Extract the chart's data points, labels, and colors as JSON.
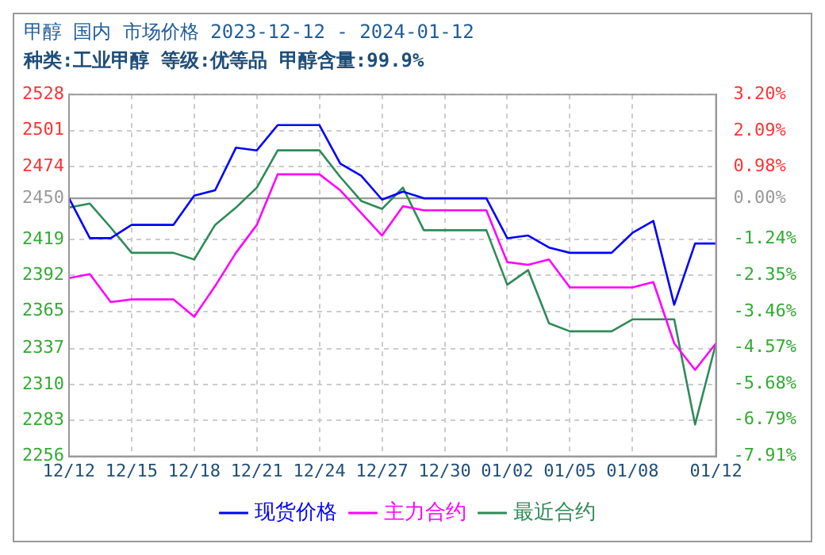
{
  "chart_data": {
    "type": "line",
    "title": "甲醇 国内 市场价格 2023-12-12 - 2024-01-12",
    "subtitle": "种类:工业甲醇 等级:优等品 甲醇含量:99.9%",
    "x": [
      "2023-12-12",
      "2023-12-13",
      "2023-12-14",
      "2023-12-15",
      "2023-12-16",
      "2023-12-17",
      "2023-12-18",
      "2023-12-19",
      "2023-12-20",
      "2023-12-21",
      "2023-12-22",
      "2023-12-23",
      "2023-12-24",
      "2023-12-25",
      "2023-12-26",
      "2023-12-27",
      "2023-12-28",
      "2023-12-29",
      "2023-12-30",
      "2023-12-31",
      "2024-01-01",
      "2024-01-02",
      "2024-01-03",
      "2024-01-04",
      "2024-01-05",
      "2024-01-06",
      "2024-01-07",
      "2024-01-08",
      "2024-01-09",
      "2024-01-10",
      "2024-01-11",
      "2024-01-12"
    ],
    "series": [
      {
        "name": "现货价格",
        "color": "#0000ff",
        "values": [
          2450,
          2420,
          2420,
          2430,
          2430,
          2430,
          2452,
          2456,
          2488,
          2486,
          2505,
          2505,
          2505,
          2476,
          2467,
          2449,
          2455,
          2450,
          2450,
          2450,
          2450,
          2420,
          2422,
          2413,
          2409,
          2409,
          2409,
          2424,
          2433,
          2370,
          2416,
          2416
        ]
      },
      {
        "name": "主力合约",
        "color": "#ff00ff",
        "values": [
          2390,
          2393,
          2372,
          2374,
          2374,
          2374,
          2361,
          2384,
          2409,
          2430,
          2468,
          2468,
          2468,
          2456,
          2439,
          2422,
          2444,
          2441,
          2441,
          2441,
          2441,
          2402,
          2400,
          2404,
          2383,
          2383,
          2383,
          2383,
          2387,
          2341,
          2321,
          2341
        ]
      },
      {
        "name": "最近合约",
        "color": "#2e8b57",
        "values": [
          2443,
          2446,
          2428,
          2409,
          2409,
          2409,
          2404,
          2430,
          2443,
          2458,
          2486,
          2486,
          2486,
          2466,
          2448,
          2442,
          2458,
          2426,
          2426,
          2426,
          2426,
          2385,
          2396,
          2356,
          2350,
          2350,
          2350,
          2359,
          2359,
          2359,
          2280,
          2341
        ]
      }
    ],
    "xlim": [
      "2023-12-12",
      "2024-01-12"
    ],
    "xticks": [
      {
        "value": "2023-12-12",
        "label": "12/12"
      },
      {
        "value": "2023-12-15",
        "label": "12/15"
      },
      {
        "value": "2023-12-18",
        "label": "12/18"
      },
      {
        "value": "2023-12-21",
        "label": "12/21"
      },
      {
        "value": "2023-12-24",
        "label": "12/24"
      },
      {
        "value": "2023-12-27",
        "label": "12/27"
      },
      {
        "value": "2023-12-30",
        "label": "12/30"
      },
      {
        "value": "2024-01-02",
        "label": "01/02"
      },
      {
        "value": "2024-01-05",
        "label": "01/05"
      },
      {
        "value": "2024-01-08",
        "label": "01/08"
      },
      {
        "value": "2024-01-12",
        "label": "01/12"
      }
    ],
    "ylim": [
      2256,
      2528
    ],
    "yticks": [
      2528,
      2501,
      2474,
      2450,
      2419,
      2392,
      2365,
      2337,
      2310,
      2283,
      2256
    ],
    "y2lim": [
      -7.91,
      3.2
    ],
    "y2ticks": [
      {
        "value": 3.2,
        "label": "3.20%"
      },
      {
        "value": 2.09,
        "label": "2.09%"
      },
      {
        "value": 0.98,
        "label": "0.98%"
      },
      {
        "value": 0,
        "label": "0.00%"
      },
      {
        "value": -1.24,
        "label": "-1.24%"
      },
      {
        "value": -2.35,
        "label": "-2.35%"
      },
      {
        "value": -3.46,
        "label": "-3.46%"
      },
      {
        "value": -4.57,
        "label": "-4.57%"
      },
      {
        "value": -5.68,
        "label": "-5.68%"
      },
      {
        "value": -6.79,
        "label": "-6.79%"
      },
      {
        "value": -7.91,
        "label": "-7.91%"
      }
    ],
    "ref_lines": [
      {
        "axis": "y",
        "value": 2450,
        "color": "#999999"
      }
    ],
    "grid": true,
    "legend": "bottom",
    "marker": "none",
    "line_style": "solid"
  }
}
